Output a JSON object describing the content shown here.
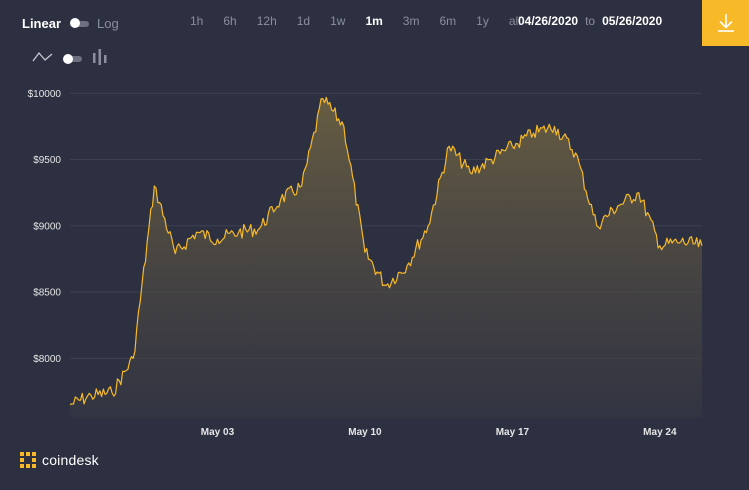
{
  "controls": {
    "scale_linear": "Linear",
    "scale_log": "Log",
    "ranges": [
      "1h",
      "6h",
      "12h",
      "1d",
      "1w",
      "1m",
      "3m",
      "6m",
      "1y",
      "all"
    ],
    "active_range": "1m",
    "date_from": "04/26/2020",
    "date_sep": "to",
    "date_to": "05/26/2020",
    "accent_color": "#f7b927"
  },
  "brand": {
    "name": "coindesk"
  },
  "chart_data": {
    "type": "area",
    "title": "",
    "xlabel": "",
    "ylabel": "",
    "x_tick_labels": [
      "May 03",
      "May 10",
      "May 17",
      "May 24"
    ],
    "y_tick_labels": [
      "$10000",
      "$9500",
      "$9000",
      "$8500",
      "$8000"
    ],
    "y_ticks": [
      10000,
      9500,
      9000,
      8500,
      8000
    ],
    "x_range": [
      "2020-04-26",
      "2020-05-26"
    ],
    "ylim": [
      7550,
      10100
    ],
    "grid": true,
    "line_color": "#f7b927",
    "series": [
      {
        "x": [
          "2020-04-26",
          "2020-04-27",
          "2020-04-28",
          "2020-04-29",
          "2020-04-30",
          "2020-05-01",
          "2020-05-02",
          "2020-05-03",
          "2020-05-04",
          "2020-05-05",
          "2020-05-06",
          "2020-05-07",
          "2020-05-08",
          "2020-05-09",
          "2020-05-10",
          "2020-05-11",
          "2020-05-12",
          "2020-05-13",
          "2020-05-14",
          "2020-05-15",
          "2020-05-16",
          "2020-05-17",
          "2020-05-18",
          "2020-05-19",
          "2020-05-20",
          "2020-05-21",
          "2020-05-22",
          "2020-05-23",
          "2020-05-24",
          "2020-05-25",
          "2020-05-26"
        ],
        "values": [
          7650,
          7720,
          7740,
          8000,
          9300,
          8790,
          8950,
          8900,
          8950,
          8980,
          9200,
          9300,
          9960,
          9750,
          8800,
          8550,
          8700,
          9000,
          9600,
          9400,
          9500,
          9600,
          9700,
          9750,
          9550,
          9000,
          9150,
          9250,
          8850,
          8880,
          8850
        ]
      }
    ]
  }
}
